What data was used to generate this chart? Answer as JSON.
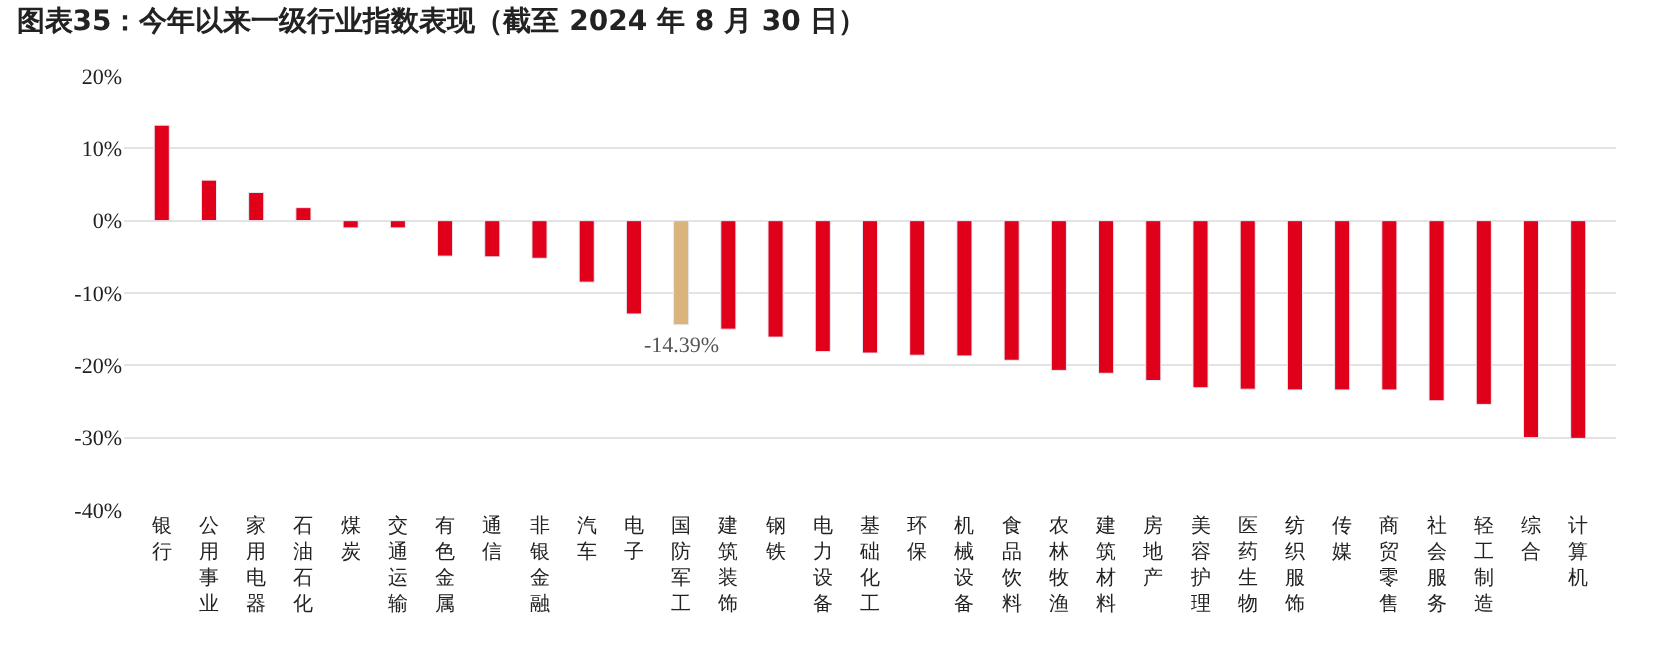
{
  "chart_data": {
    "type": "bar",
    "title": "图表35：今年以来一级行业指数表现（截至 2024 年 8 月 30 日）",
    "categories": [
      "银行",
      "公用事业",
      "家用电器",
      "石油石化",
      "煤炭",
      "交通运输",
      "有色金属",
      "通信",
      "非银金融",
      "汽车",
      "电子",
      "国防军工",
      "建筑装饰",
      "钢铁",
      "电力设备",
      "基础化工",
      "环保",
      "机械设备",
      "食品饮料",
      "农林牧渔",
      "建筑材料",
      "房地产",
      "美容护理",
      "医药生物",
      "纺织服饰",
      "传媒",
      "商贸零售",
      "社会服务",
      "轻工制造",
      "综合",
      "计算机"
    ],
    "values": [
      13.2,
      5.6,
      3.9,
      1.8,
      -1.0,
      -1.0,
      -4.9,
      -5.0,
      -5.2,
      -8.5,
      -12.9,
      -14.39,
      -15.0,
      -16.1,
      -18.1,
      -18.3,
      -18.6,
      -18.7,
      -19.3,
      -20.7,
      -21.1,
      -22.1,
      -23.1,
      -23.3,
      -23.4,
      -23.4,
      -23.4,
      -24.9,
      -25.4,
      -30.0,
      -30.1
    ],
    "colors": [
      "#e10019",
      "#e10019",
      "#e10019",
      "#e10019",
      "#e10019",
      "#e10019",
      "#e10019",
      "#e10019",
      "#e10019",
      "#e10019",
      "#e10019",
      "#d9b47c",
      "#e10019",
      "#e10019",
      "#e10019",
      "#e10019",
      "#e10019",
      "#e10019",
      "#e10019",
      "#e10019",
      "#e10019",
      "#e10019",
      "#e10019",
      "#e10019",
      "#e10019",
      "#e10019",
      "#e10019",
      "#e10019",
      "#e10019",
      "#e10019",
      "#e10019"
    ],
    "value_labels": [
      null,
      null,
      null,
      null,
      null,
      null,
      null,
      null,
      null,
      null,
      null,
      "-14.39%",
      null,
      null,
      null,
      null,
      null,
      null,
      null,
      null,
      null,
      null,
      null,
      null,
      null,
      null,
      null,
      null,
      null,
      null,
      null
    ],
    "ylim": [
      -40,
      20
    ],
    "yticks": [
      {
        "value": 20,
        "label": "20%"
      },
      {
        "value": 10,
        "label": "10%"
      },
      {
        "value": 0,
        "label": "0%"
      },
      {
        "value": -10,
        "label": "-10%"
      },
      {
        "value": -20,
        "label": "-20%"
      },
      {
        "value": -30,
        "label": "-30%"
      },
      {
        "value": -40,
        "label": "-40%"
      }
    ],
    "grid": "y"
  }
}
